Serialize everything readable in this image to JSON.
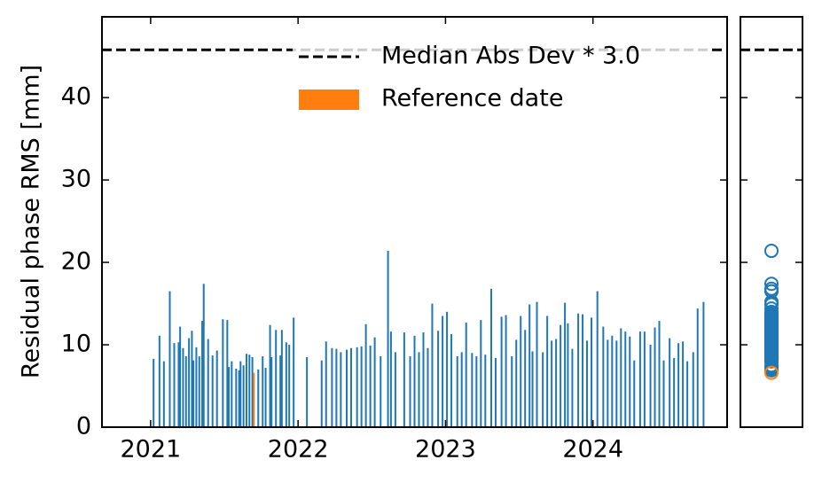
{
  "chart_data": {
    "type": "bar",
    "ylabel": "Residual phase RMS [mm]",
    "color": "#1f77b4",
    "x": [
      2021.02,
      2021.06,
      2021.09,
      2021.13,
      2021.16,
      2021.19,
      2021.2,
      2021.22,
      2021.24,
      2021.26,
      2021.28,
      2021.29,
      2021.31,
      2021.33,
      2021.35,
      2021.36,
      2021.39,
      2021.42,
      2021.45,
      2021.49,
      2021.52,
      2021.53,
      2021.55,
      2021.58,
      2021.6,
      2021.61,
      2021.63,
      2021.65,
      2021.67,
      2021.69,
      2021.73,
      2021.76,
      2021.78,
      2021.81,
      2021.82,
      2021.85,
      2021.88,
      2021.89,
      2021.92,
      2021.94,
      2021.97,
      2022.06,
      2022.16,
      2022.19,
      2022.23,
      2022.26,
      2022.29,
      2022.33,
      2022.36,
      2022.4,
      2022.43,
      2022.46,
      2022.49,
      2022.52,
      2022.56,
      2022.61,
      2022.63,
      2022.66,
      2022.72,
      2022.76,
      2022.79,
      2022.82,
      2022.85,
      2022.88,
      2022.91,
      2022.95,
      2022.98,
      2023.01,
      2023.04,
      2023.08,
      2023.11,
      2023.14,
      2023.18,
      2023.21,
      2023.24,
      2023.27,
      2023.31,
      2023.34,
      2023.38,
      2023.41,
      2023.45,
      2023.48,
      2023.51,
      2023.54,
      2023.57,
      2023.59,
      2023.62,
      2023.66,
      2023.69,
      2023.72,
      2023.75,
      2023.78,
      2023.81,
      2023.83,
      2023.86,
      2023.9,
      2023.93,
      2023.96,
      2023.99,
      2024.03,
      2024.07,
      2024.1,
      2024.13,
      2024.16,
      2024.19,
      2024.22,
      2024.25,
      2024.28,
      2024.32,
      2024.35,
      2024.39,
      2024.42,
      2024.45,
      2024.48,
      2024.52,
      2024.55,
      2024.58,
      2024.61,
      2024.64,
      2024.68,
      2024.71,
      2024.75
    ],
    "values": [
      8.3,
      11.1,
      8.0,
      16.5,
      10.2,
      10.3,
      12.2,
      9.6,
      8.6,
      10.8,
      11.7,
      8.1,
      9.7,
      8.6,
      12.9,
      17.4,
      10.7,
      8.7,
      9.3,
      13.1,
      13.0,
      7.3,
      8.0,
      7.1,
      6.9,
      8.0,
      7.5,
      8.9,
      8.8,
      8.5,
      7.0,
      8.6,
      7.2,
      12.4,
      8.5,
      11.8,
      8.7,
      11.8,
      10.3,
      10.0,
      13.3,
      8.5,
      8.1,
      10.4,
      9.6,
      9.5,
      9.1,
      9.4,
      9.6,
      9.7,
      9.8,
      12.5,
      9.9,
      10.9,
      8.6,
      21.4,
      11.6,
      9.1,
      11.5,
      8.6,
      11.1,
      9.1,
      11.5,
      9.6,
      15.0,
      11.7,
      13.5,
      14.0,
      11.3,
      8.6,
      9.1,
      12.7,
      9.0,
      8.6,
      13.0,
      8.8,
      16.8,
      8.4,
      13.4,
      13.6,
      8.6,
      10.6,
      13.5,
      11.8,
      14.9,
      9.2,
      15.2,
      9.1,
      13.5,
      10.5,
      10.7,
      12.4,
      15.1,
      12.6,
      9.5,
      13.8,
      13.7,
      10.5,
      13.3,
      16.5,
      12.2,
      10.6,
      11.1,
      10.5,
      12.0,
      11.6,
      11.0,
      8.1,
      11.6,
      11.6,
      10.0,
      12.1,
      12.9,
      8.1,
      10.8,
      8.4,
      10.2,
      10.4,
      8.0,
      9.1,
      14.4,
      15.2
    ],
    "reference": {
      "name": "Reference date",
      "x": 2021.7,
      "value": 6.6,
      "color": "#ff7f0e"
    },
    "threshold": {
      "name": "Median Abs Dev * 3.0",
      "value": 45.8,
      "color": "#000000"
    },
    "xlim": [
      2020.67,
      2024.91
    ],
    "xticks": [
      2021,
      2022,
      2023,
      2024
    ],
    "ylim": [
      0,
      49.8
    ],
    "yticks": [
      0,
      10,
      20,
      30,
      40
    ]
  }
}
